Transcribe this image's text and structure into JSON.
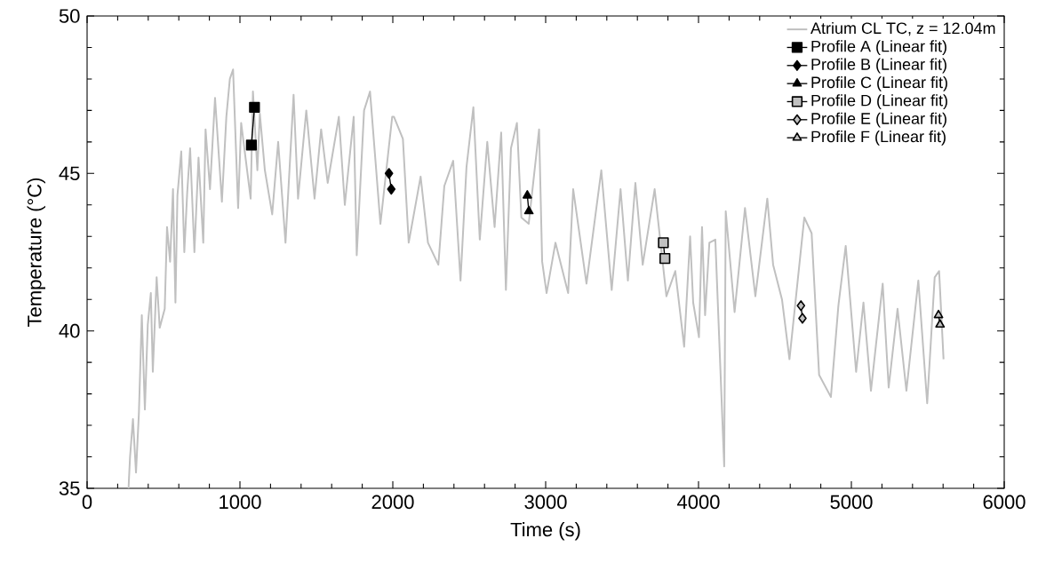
{
  "chart_data": {
    "type": "line",
    "xlabel": "Time (s)",
    "ylabel": "Temperature (°C)",
    "xlim": [
      0,
      6000
    ],
    "ylim": [
      35,
      50
    ],
    "xticks": [
      0,
      1000,
      2000,
      3000,
      4000,
      5000,
      6000
    ],
    "yticks": [
      35,
      40,
      45,
      50
    ],
    "grid": false,
    "legend": "top right",
    "series": [
      {
        "name": "Atrium CL TC, z = 12.04m",
        "color": "#c0c0c0",
        "marker": "none",
        "x": [
          271,
          281,
          300,
          320,
          339,
          358,
          378,
          397,
          417,
          430,
          455,
          475,
          508,
          523,
          543,
          562,
          578,
          591,
          616,
          636,
          655,
          674,
          702,
          729,
          760,
          775,
          804,
          837,
          882,
          911,
          934,
          955,
          988,
          1008,
          1070,
          1085,
          1114,
          1130,
          1163,
          1211,
          1250,
          1298,
          1351,
          1380,
          1434,
          1488,
          1531,
          1574,
          1647,
          1686,
          1744,
          1764,
          1812,
          1851,
          1919,
          1996,
          2007,
          2066,
          2104,
          2182,
          2230,
          2298,
          2337,
          2395,
          2443,
          2482,
          2527,
          2569,
          2618,
          2666,
          2709,
          2740,
          2773,
          2812,
          2841,
          2889,
          2957,
          2977,
          3006,
          3064,
          3147,
          3180,
          3267,
          3364,
          3432,
          3490,
          3538,
          3587,
          3635,
          3713,
          3790,
          3848,
          3906,
          3945,
          3965,
          4003,
          4023,
          4043,
          4071,
          4110,
          4168,
          4178,
          4236,
          4304,
          4372,
          4450,
          4488,
          4546,
          4595,
          4692,
          4740,
          4789,
          4866,
          4915,
          4963,
          5031,
          5079,
          5128,
          5205,
          5244,
          5302,
          5360,
          5438,
          5496,
          5545,
          5574,
          5603
        ],
        "values": [
          35.0,
          36.0,
          37.2,
          35.5,
          37.4,
          40.5,
          37.5,
          40.2,
          41.2,
          38.7,
          41.7,
          40.1,
          40.7,
          43.3,
          42.2,
          44.5,
          40.9,
          44.3,
          45.7,
          42.5,
          44.4,
          45.8,
          42.5,
          45.5,
          42.8,
          46.4,
          44.5,
          47.4,
          44.1,
          46.8,
          48.0,
          48.3,
          43.9,
          46.6,
          44.2,
          47.6,
          45.1,
          46.9,
          45.1,
          43.7,
          46.0,
          42.8,
          47.5,
          44.2,
          47.0,
          44.2,
          46.4,
          44.7,
          46.8,
          44.0,
          46.8,
          42.4,
          47.0,
          47.6,
          43.4,
          46.8,
          46.8,
          46.1,
          42.8,
          44.9,
          42.8,
          42.1,
          44.6,
          45.4,
          41.6,
          45.2,
          47.1,
          42.9,
          46.0,
          43.3,
          46.3,
          41.3,
          45.8,
          46.6,
          43.6,
          43.4,
          46.4,
          42.2,
          41.2,
          42.8,
          41.2,
          44.5,
          41.5,
          45.1,
          41.3,
          44.5,
          41.6,
          44.7,
          42.1,
          44.5,
          41.1,
          41.9,
          39.5,
          43.0,
          40.9,
          39.8,
          43.3,
          40.5,
          42.8,
          42.9,
          35.7,
          43.8,
          40.6,
          43.9,
          41.1,
          44.2,
          42.1,
          41.0,
          39.1,
          43.6,
          43.1,
          38.6,
          37.9,
          40.8,
          42.7,
          38.7,
          40.9,
          38.1,
          41.5,
          38.2,
          40.7,
          38.1,
          41.6,
          37.7,
          41.7,
          41.9,
          39.1
        ]
      },
      {
        "name": "Profile A (Linear fit)",
        "color": "#000000",
        "marker": "square",
        "x": [
          1075,
          1095
        ],
        "values": [
          45.9,
          47.1
        ]
      },
      {
        "name": "Profile B (Linear fit)",
        "color": "#000000",
        "marker": "diamond",
        "x": [
          1975,
          1990
        ],
        "values": [
          45.0,
          44.5
        ]
      },
      {
        "name": "Profile C (Linear fit)",
        "color": "#000000",
        "marker": "triangle",
        "x": [
          2880,
          2890
        ],
        "values": [
          44.3,
          43.8
        ]
      },
      {
        "name": "Profile D (Linear fit)",
        "color": "#c0c0c0",
        "marker": "square",
        "x": [
          3770,
          3780
        ],
        "values": [
          42.8,
          42.3
        ]
      },
      {
        "name": "Profile E (Linear fit)",
        "color": "#c0c0c0",
        "marker": "diamond",
        "x": [
          4670,
          4680
        ],
        "values": [
          40.8,
          40.4
        ]
      },
      {
        "name": "Profile F (Linear fit)",
        "color": "#c0c0c0",
        "marker": "triangle",
        "x": [
          5570,
          5580
        ],
        "values": [
          40.5,
          40.2
        ]
      }
    ]
  }
}
